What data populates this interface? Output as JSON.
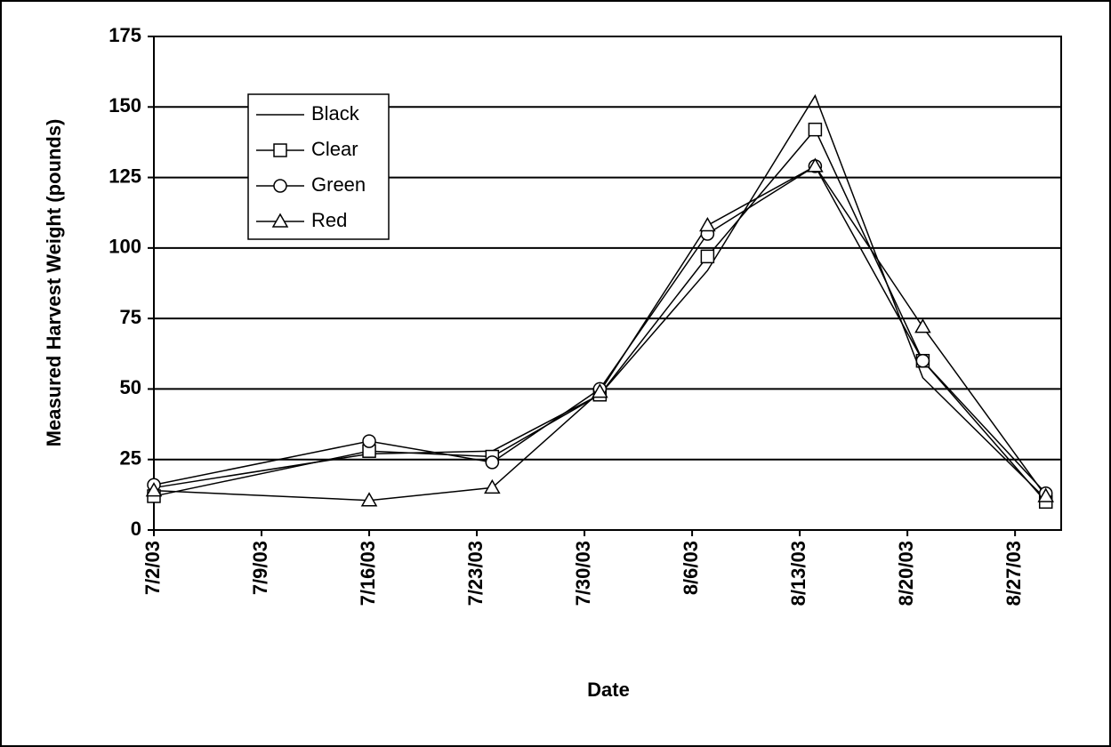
{
  "chart_data": {
    "type": "line",
    "x_label": "Date",
    "y_label": "Measured Harvest Weight (pounds)",
    "x": [
      "2003-07-02",
      "2003-07-16",
      "2003-07-24",
      "2003-07-31",
      "2003-08-07",
      "2003-08-14",
      "2003-08-21",
      "2003-08-29"
    ],
    "series": [
      {
        "name": "Black",
        "color": "#000000",
        "marker": "none",
        "values": [
          15,
          27,
          28,
          48,
          92,
          154,
          54,
          11
        ]
      },
      {
        "name": "Clear",
        "color": "#000000",
        "marker": "square",
        "values": [
          12,
          28,
          26,
          48,
          97,
          142,
          60,
          10
        ]
      },
      {
        "name": "Green",
        "color": "#000000",
        "marker": "circle",
        "values": [
          16,
          31.5,
          24,
          50,
          105,
          129,
          60,
          13
        ]
      },
      {
        "name": "Red",
        "color": "#000000",
        "marker": "triangle",
        "values": [
          14,
          10.5,
          15,
          49,
          108,
          129,
          72,
          12
        ]
      }
    ],
    "xlim": [
      "2003-07-02",
      "2003-08-30"
    ],
    "xticks": [
      {
        "value": "2003-07-02",
        "label": "7/2/03"
      },
      {
        "value": "2003-07-09",
        "label": "7/9/03"
      },
      {
        "value": "2003-07-16",
        "label": "7/16/03"
      },
      {
        "value": "2003-07-23",
        "label": "7/23/03"
      },
      {
        "value": "2003-07-30",
        "label": "7/30/03"
      },
      {
        "value": "2003-08-06",
        "label": "8/6/03"
      },
      {
        "value": "2003-08-13",
        "label": "8/13/03"
      },
      {
        "value": "2003-08-20",
        "label": "8/20/03"
      },
      {
        "value": "2003-08-27",
        "label": "8/27/03"
      }
    ],
    "ylim": [
      0,
      175
    ],
    "yticks": [
      0,
      25,
      50,
      75,
      100,
      125,
      150,
      175
    ],
    "grid": true,
    "legend": "upper-left"
  }
}
